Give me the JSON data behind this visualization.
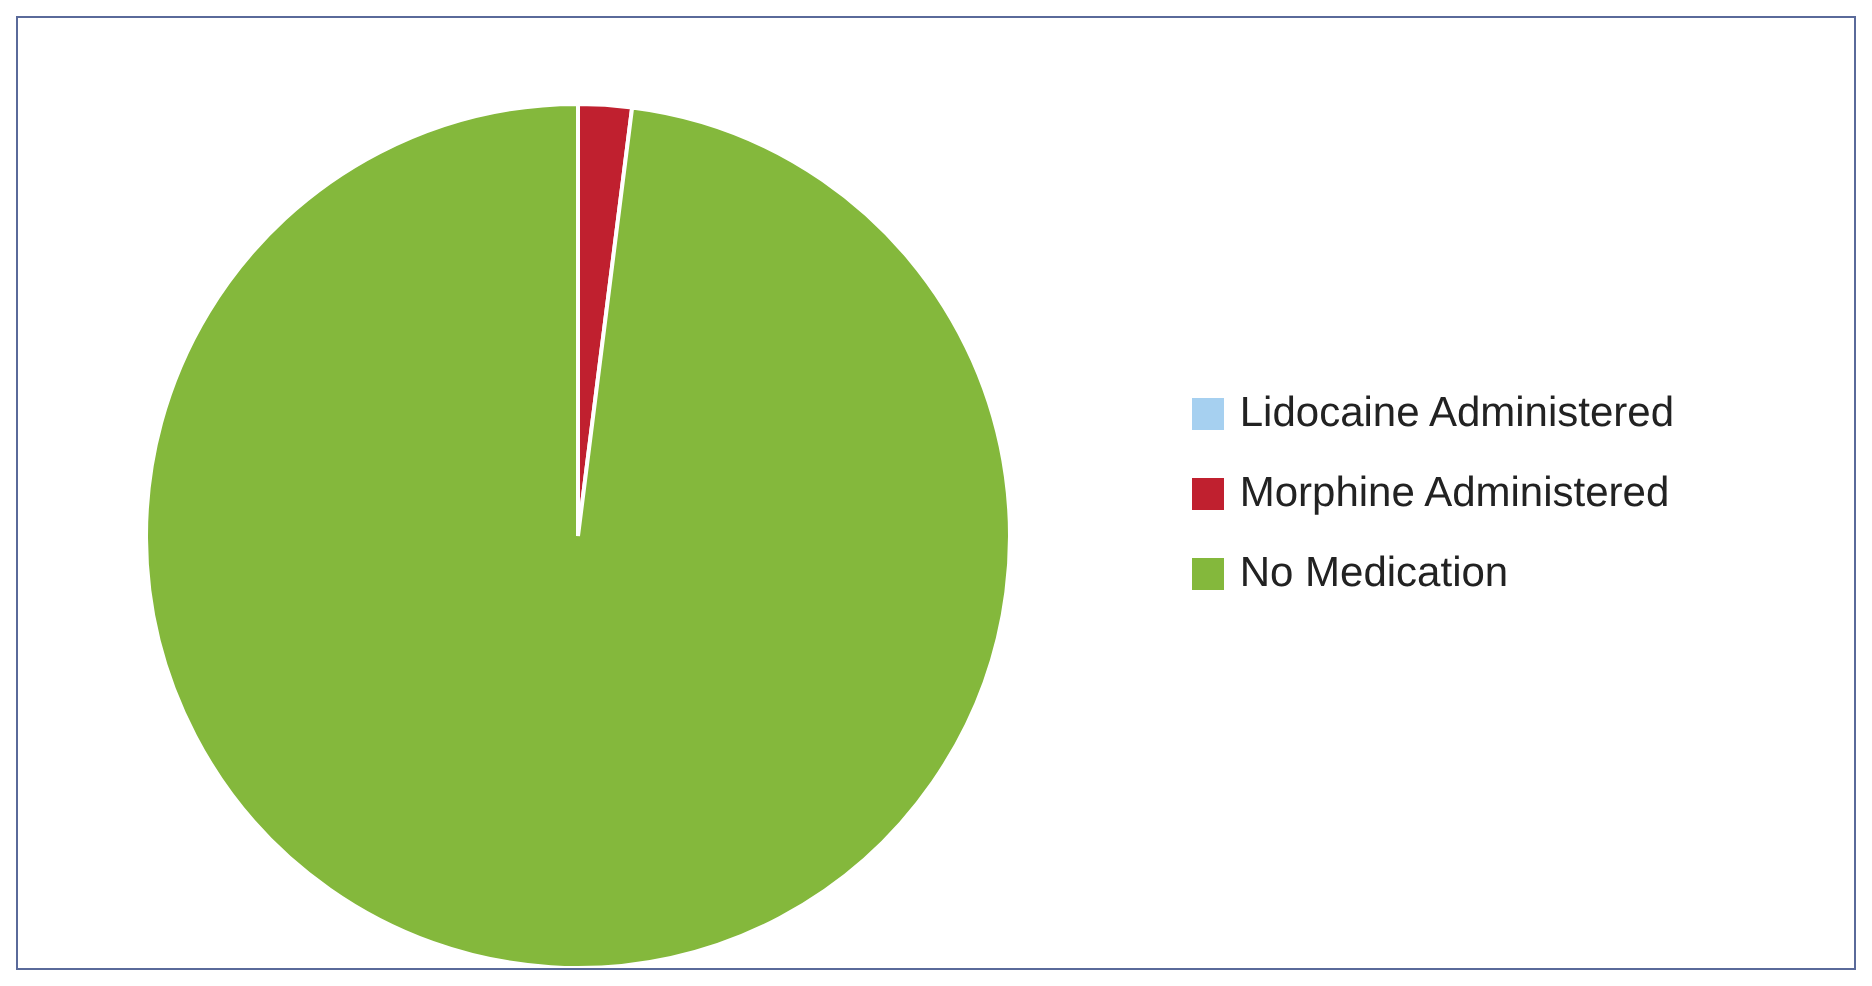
{
  "chart_data": {
    "type": "pie",
    "categories": [
      "Lidocaine Administered",
      "Morphine Administered",
      "No Medication"
    ],
    "values": [
      0,
      2,
      98
    ],
    "colors": [
      "#a6d0f0",
      "#c0202f",
      "#84b83c"
    ],
    "legend": "right"
  }
}
